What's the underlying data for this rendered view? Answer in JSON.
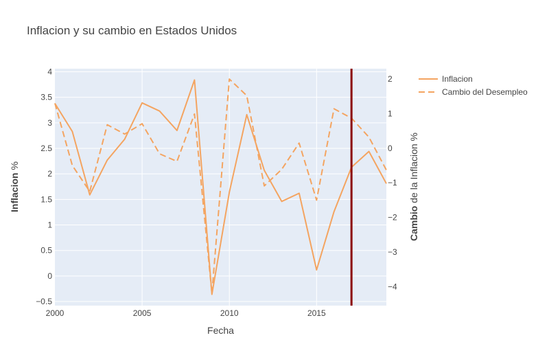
{
  "chart_data": {
    "type": "line",
    "title": "Inflacion y su cambio en Estados Unidos",
    "xlabel": "Fecha",
    "ylabel_bold": "Inflacion",
    "ylabel_rest": " %",
    "y2label_bold": "Cambio",
    "y2label_rest": " de la Inflacion %",
    "xlim": [
      2000,
      2019
    ],
    "ylim": [
      -0.58,
      4.06
    ],
    "y2lim": [
      -4.55,
      2.3
    ],
    "x_ticks": [
      "2000",
      "2005",
      "2010",
      "2015"
    ],
    "y_ticks": [
      "−0.5",
      "0",
      "0.5",
      "1",
      "1.5",
      "2",
      "2.5",
      "3",
      "3.5",
      "4"
    ],
    "y2_ticks": [
      "−4",
      "−3",
      "−2",
      "−1",
      "0",
      "1",
      "2"
    ],
    "vline_x": 2017,
    "vline_color": "#8b0000",
    "line_color": "#f4a460",
    "plot_bg": "#e5ecf6",
    "grid": true,
    "legend_position": "top-right",
    "series": [
      {
        "name": "Inflacion",
        "axis": "y",
        "dash": "solid",
        "x": [
          2000,
          2001,
          2002,
          2003,
          2004,
          2005,
          2006,
          2007,
          2008,
          2009,
          2010,
          2011,
          2012,
          2013,
          2014,
          2015,
          2016,
          2017,
          2018,
          2019
        ],
        "values": [
          3.38,
          2.83,
          1.59,
          2.27,
          2.68,
          3.39,
          3.23,
          2.85,
          3.84,
          -0.36,
          1.64,
          3.16,
          2.07,
          1.46,
          1.62,
          0.12,
          1.26,
          2.13,
          2.44,
          1.81
        ]
      },
      {
        "name": "Cambio del Desempleo",
        "axis": "y2",
        "dash": "dash",
        "x": [
          2000,
          2001,
          2002,
          2003,
          2004,
          2005,
          2006,
          2007,
          2008,
          2009,
          2010,
          2011,
          2012,
          2013,
          2014,
          2015,
          2016,
          2017,
          2018,
          2019
        ],
        "values": [
          1.3,
          -0.5,
          -1.25,
          0.68,
          0.41,
          0.71,
          -0.16,
          -0.38,
          0.99,
          -4.2,
          2.0,
          1.52,
          -1.09,
          -0.61,
          0.15,
          -1.5,
          1.14,
          0.87,
          0.32,
          -0.63
        ]
      }
    ]
  }
}
